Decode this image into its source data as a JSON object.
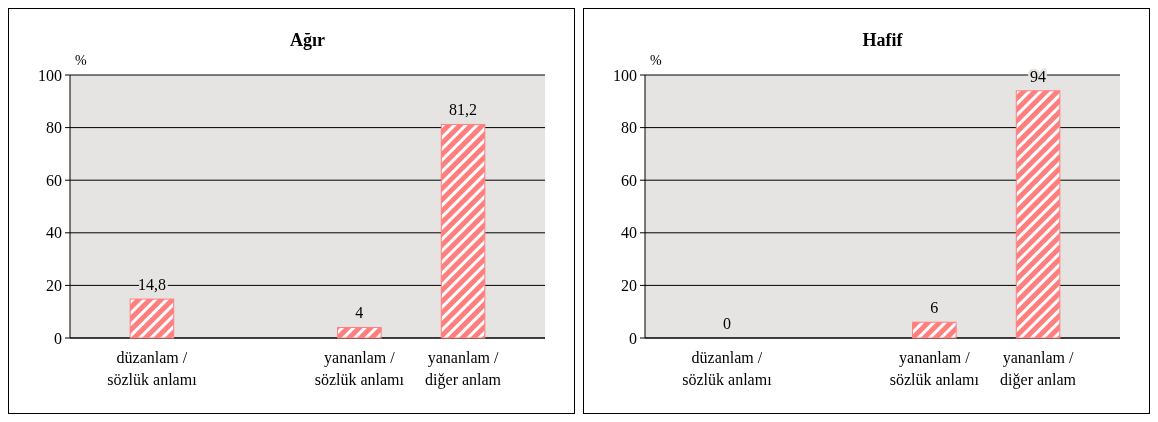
{
  "chart_data": [
    {
      "type": "bar",
      "title": "Ağır",
      "ylabel": "%",
      "categories": [
        "düzanlam / sözlük anlamı",
        null,
        "yananlam / sözlük anlamı",
        "yananlam / diğer anlam"
      ],
      "values": [
        14.8,
        null,
        4,
        81.2
      ],
      "value_labels": [
        "14,8",
        null,
        "4",
        "81,2"
      ],
      "color": "#ff7f7f",
      "ylim": [
        0,
        100
      ],
      "yticks": [
        0,
        20,
        40,
        60,
        80,
        100
      ],
      "grid": "y"
    },
    {
      "type": "bar",
      "title": "Hafif",
      "ylabel": "%",
      "categories": [
        "düzanlam / sözlük anlamı",
        null,
        "yananlam / sözlük anlamı",
        "yananlam / diğer anlam"
      ],
      "values": [
        0,
        null,
        6,
        94
      ],
      "value_labels": [
        "0",
        null,
        "6",
        "94"
      ],
      "color": "#ff7f7f",
      "ylim": [
        0,
        100
      ],
      "yticks": [
        0,
        20,
        40,
        60,
        80,
        100
      ],
      "grid": "y"
    }
  ]
}
